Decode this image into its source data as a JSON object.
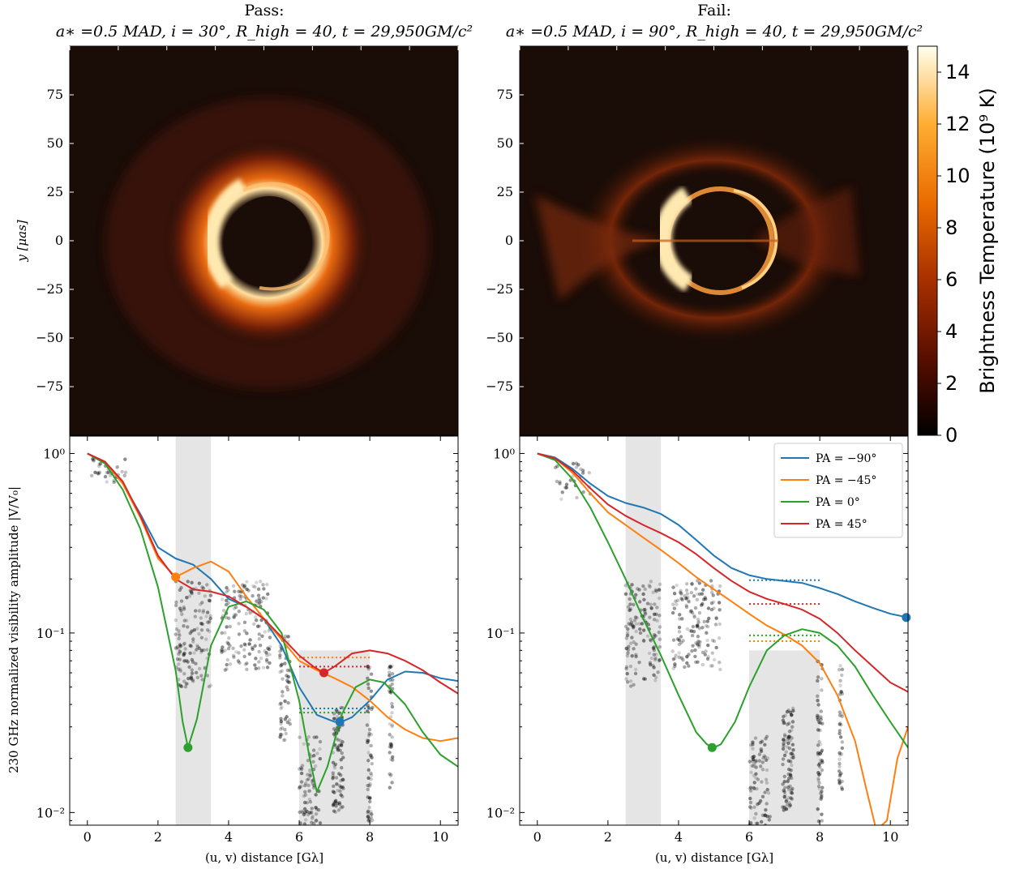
{
  "panels": {
    "left_status": "Pass:",
    "left_params": "a∗ =0.5 MAD, i = 30°, R_high = 40, t = 29,950GM/c²",
    "right_status": "Fail:",
    "right_params": "a∗ =0.5 MAD, i = 90°, R_high = 40, t = 29,950GM/c²"
  },
  "colors": {
    "pa_m90": "#1f77b4",
    "pa_m45": "#ff7f0e",
    "pa_0": "#2ca02c",
    "pa_45": "#d62728",
    "shade": "#e5e5e5",
    "image_bg": "#1a0c07"
  },
  "images": {
    "ylabel": "y [μas]",
    "yticks": [
      "75",
      "50",
      "25",
      "0",
      "−25",
      "−50",
      "−75"
    ],
    "ytick_values": [
      75,
      50,
      25,
      0,
      -25,
      -50,
      -75
    ],
    "yrange": [
      -100,
      100
    ],
    "colorbar": {
      "label": "Brightness Temperature (10⁹ K)",
      "ticks": [
        "0",
        "2",
        "4",
        "6",
        "8",
        "10",
        "12",
        "14"
      ],
      "tick_values": [
        0,
        2,
        4,
        6,
        8,
        10,
        12,
        14
      ],
      "range": [
        0,
        15
      ]
    }
  },
  "chart_data": [
    {
      "type": "line",
      "panel": "left",
      "title": "Pass: a∗ =0.5 MAD, i = 30°, R_high = 40, t = 29,950GM/c²",
      "xlabel": "(u, v) distance [Gλ]",
      "ylabel": "230 GHz normalized visibility amplitude |V/V₀|",
      "xlim": [
        -0.5,
        10.5
      ],
      "ylim": [
        0.0085,
        1.25
      ],
      "yscale": "log",
      "xticks": [
        "0",
        "2",
        "4",
        "6",
        "8",
        "10"
      ],
      "yticks": [
        "10⁰",
        "10⁻¹",
        "10⁻²"
      ],
      "shaded_x_ranges": [
        [
          2.5,
          3.5
        ],
        [
          6,
          8
        ]
      ],
      "series": [
        {
          "name": "PA = −90°",
          "color": "#1f77b4",
          "x": [
            0,
            0.5,
            1,
            1.5,
            2,
            2.5,
            3,
            3.5,
            4,
            4.5,
            5,
            5.5,
            6,
            6.5,
            7,
            7.2,
            7.5,
            8,
            8.5,
            9,
            9.5,
            10,
            10.5
          ],
          "y": [
            1.0,
            0.9,
            0.68,
            0.46,
            0.3,
            0.26,
            0.24,
            0.2,
            0.155,
            0.14,
            0.12,
            0.085,
            0.05,
            0.035,
            0.032,
            0.032,
            0.034,
            0.042,
            0.055,
            0.061,
            0.06,
            0.056,
            0.054
          ],
          "min_marker": [
            7.15,
            0.032
          ],
          "threshold": {
            "x": [
              6,
              8
            ],
            "y": 0.038
          }
        },
        {
          "name": "PA = −45°",
          "color": "#ff7f0e",
          "x": [
            0,
            0.5,
            1,
            1.5,
            2,
            2.5,
            3,
            3.5,
            4,
            4.5,
            5,
            5.5,
            6,
            6.5,
            7,
            7.5,
            8,
            8.5,
            9,
            9.5,
            10,
            10.5
          ],
          "y": [
            1.0,
            0.9,
            0.68,
            0.44,
            0.26,
            0.205,
            0.23,
            0.25,
            0.22,
            0.16,
            0.12,
            0.092,
            0.07,
            0.062,
            0.056,
            0.05,
            0.042,
            0.034,
            0.029,
            0.026,
            0.025,
            0.026
          ],
          "min_marker": [
            2.5,
            0.205
          ],
          "threshold": {
            "x": [
              6,
              8
            ],
            "y": 0.073
          }
        },
        {
          "name": "PA = 0°",
          "color": "#2ca02c",
          "x": [
            0,
            0.5,
            1,
            1.5,
            2,
            2.5,
            2.7,
            2.85,
            3.1,
            3.5,
            4,
            4.5,
            5,
            5.5,
            6,
            6.3,
            6.5,
            6.8,
            7.2,
            7.6,
            8,
            8.4,
            9,
            9.5,
            10,
            10.5
          ],
          "y": [
            1.0,
            0.88,
            0.63,
            0.38,
            0.18,
            0.062,
            0.032,
            0.023,
            0.033,
            0.085,
            0.14,
            0.15,
            0.135,
            0.1,
            0.042,
            0.02,
            0.013,
            0.018,
            0.035,
            0.05,
            0.055,
            0.053,
            0.04,
            0.028,
            0.021,
            0.018
          ],
          "min_marker": [
            2.85,
            0.023
          ],
          "threshold": {
            "x": [
              6,
              8
            ],
            "y": 0.036
          }
        },
        {
          "name": "PA = 45°",
          "color": "#d62728",
          "x": [
            0,
            0.5,
            1,
            1.5,
            2,
            2.5,
            3,
            3.5,
            4,
            4.5,
            5,
            5.5,
            6,
            6.4,
            6.7,
            7,
            7.5,
            8,
            8.5,
            9,
            9.5,
            10,
            10.5
          ],
          "y": [
            1.0,
            0.9,
            0.7,
            0.45,
            0.27,
            0.2,
            0.175,
            0.17,
            0.16,
            0.14,
            0.12,
            0.095,
            0.075,
            0.065,
            0.06,
            0.065,
            0.077,
            0.08,
            0.077,
            0.07,
            0.062,
            0.053,
            0.046
          ],
          "min_marker": [
            6.7,
            0.06
          ],
          "threshold": {
            "x": [
              6,
              8
            ],
            "y": 0.065
          }
        }
      ]
    },
    {
      "type": "line",
      "panel": "right",
      "title": "Fail: a∗ =0.5 MAD, i = 90°, R_high = 40, t = 29,950GM/c²",
      "xlabel": "(u, v) distance [Gλ]",
      "ylabel": "",
      "xlim": [
        -0.5,
        10.5
      ],
      "ylim": [
        0.0085,
        1.25
      ],
      "yscale": "log",
      "xticks": [
        "0",
        "2",
        "4",
        "6",
        "8",
        "10"
      ],
      "yticks": [
        "10⁰",
        "10⁻¹",
        "10⁻²"
      ],
      "shaded_x_ranges": [
        [
          2.5,
          3.5
        ],
        [
          6,
          8
        ]
      ],
      "legend_position": "top-right",
      "series": [
        {
          "name": "PA = −90°",
          "color": "#1f77b4",
          "x": [
            0,
            0.5,
            1,
            1.5,
            2,
            2.5,
            3,
            3.5,
            4,
            4.5,
            5,
            5.5,
            6,
            6.5,
            7,
            7.5,
            8,
            8.5,
            9,
            9.5,
            10,
            10.5
          ],
          "y": [
            1.0,
            0.95,
            0.82,
            0.68,
            0.58,
            0.53,
            0.5,
            0.46,
            0.4,
            0.33,
            0.27,
            0.23,
            0.21,
            0.2,
            0.195,
            0.19,
            0.178,
            0.165,
            0.15,
            0.138,
            0.128,
            0.122
          ],
          "min_marker": [
            10.45,
            0.122
          ],
          "threshold": {
            "x": [
              6,
              8
            ],
            "y": 0.197
          }
        },
        {
          "name": "PA = −45°",
          "color": "#ff7f0e",
          "x": [
            0,
            0.5,
            1,
            1.5,
            2,
            2.5,
            3,
            3.5,
            4,
            4.5,
            5,
            5.5,
            6,
            6.5,
            7,
            7.5,
            8,
            8.5,
            9,
            9.3,
            9.6,
            9.9,
            10.2,
            10.5
          ],
          "y": [
            1.0,
            0.94,
            0.78,
            0.6,
            0.47,
            0.4,
            0.34,
            0.29,
            0.245,
            0.205,
            0.175,
            0.15,
            0.128,
            0.11,
            0.098,
            0.085,
            0.068,
            0.045,
            0.025,
            0.014,
            0.008,
            0.009,
            0.02,
            0.03
          ],
          "threshold": {
            "x": [
              6,
              8
            ],
            "y": 0.09
          }
        },
        {
          "name": "PA = 0°",
          "color": "#2ca02c",
          "x": [
            0,
            0.5,
            1,
            1.5,
            2,
            2.5,
            3,
            3.5,
            4,
            4.5,
            4.8,
            5,
            5.2,
            5.6,
            6,
            6.5,
            7,
            7.5,
            8,
            8.5,
            9,
            9.5,
            10,
            10.5
          ],
          "y": [
            1.0,
            0.92,
            0.72,
            0.5,
            0.32,
            0.2,
            0.12,
            0.075,
            0.045,
            0.028,
            0.024,
            0.023,
            0.024,
            0.032,
            0.05,
            0.08,
            0.097,
            0.105,
            0.1,
            0.085,
            0.065,
            0.045,
            0.032,
            0.023
          ],
          "min_marker": [
            4.95,
            0.023
          ],
          "threshold": {
            "x": [
              6,
              8
            ],
            "y": 0.097
          }
        },
        {
          "name": "PA = 45°",
          "color": "#d62728",
          "x": [
            0,
            0.5,
            1,
            1.5,
            2,
            2.5,
            3,
            3.5,
            4,
            4.5,
            5,
            5.5,
            6,
            6.5,
            7,
            7.5,
            8,
            8.5,
            9,
            9.5,
            10,
            10.5
          ],
          "y": [
            1.0,
            0.94,
            0.8,
            0.64,
            0.52,
            0.45,
            0.4,
            0.36,
            0.32,
            0.275,
            0.23,
            0.195,
            0.17,
            0.155,
            0.145,
            0.135,
            0.12,
            0.1,
            0.08,
            0.065,
            0.053,
            0.047
          ],
          "threshold": {
            "x": [
              6,
              8
            ],
            "y": 0.145
          }
        }
      ]
    }
  ]
}
